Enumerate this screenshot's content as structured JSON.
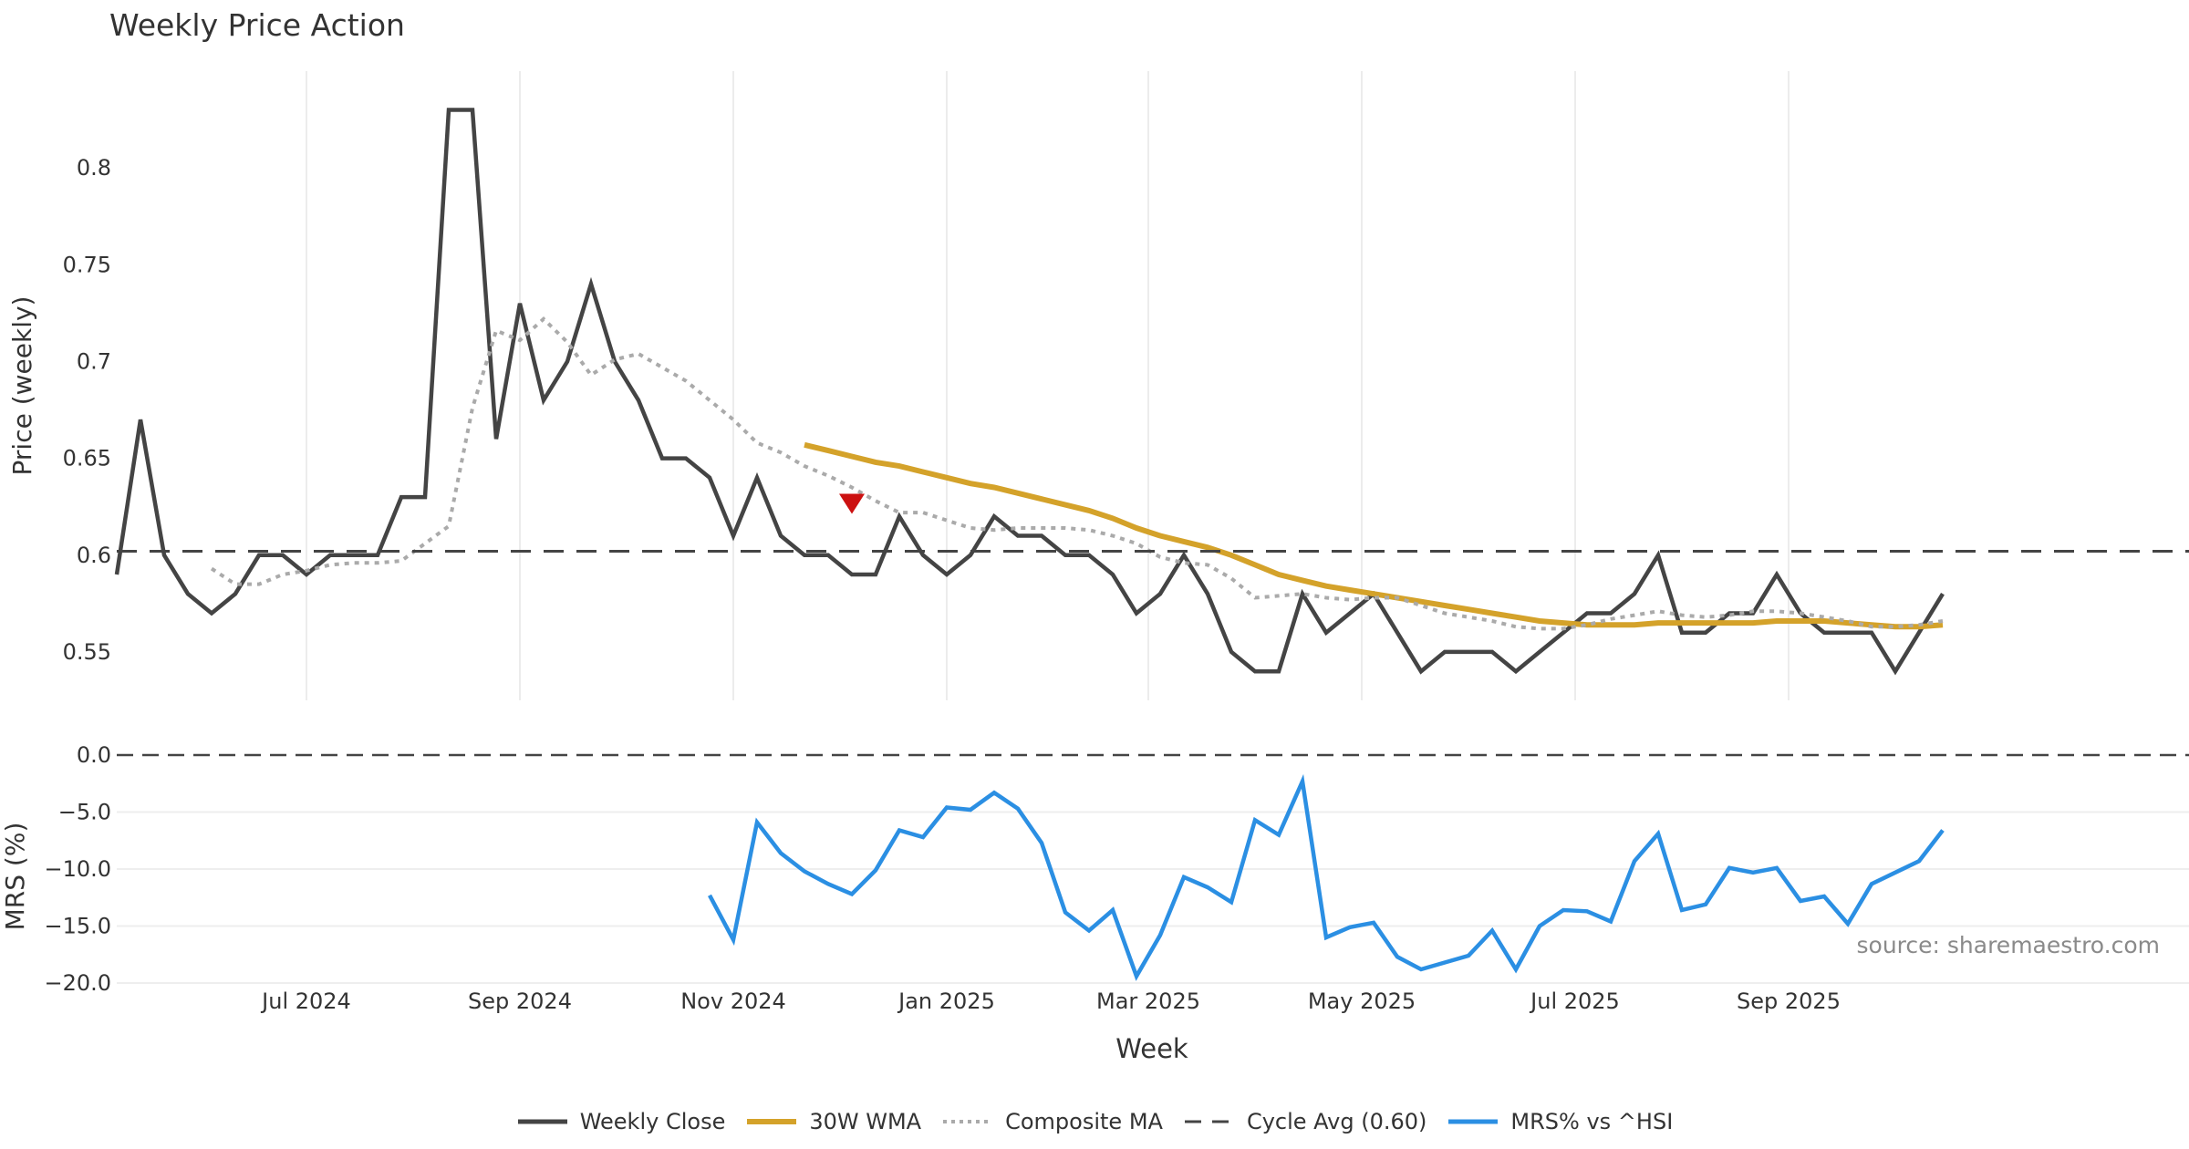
{
  "chart_data": {
    "type": "line",
    "title": "Weekly Price Action",
    "source_note": "source: sharemaestro.com",
    "xlabel": "Week",
    "x_ticks": [
      "Jul 2024",
      "Sep 2024",
      "Nov 2024",
      "Jan 2025",
      "Mar 2025",
      "May 2025",
      "Jul 2025",
      "Sep 2025"
    ],
    "weeks_per_tick": [
      8,
      17,
      26,
      35,
      43.5,
      52.5,
      61.5,
      70.5
    ],
    "price_panel": {
      "ylabel": "Price (weekly)",
      "ylim": [
        0.525,
        0.85
      ],
      "yticks": [
        "0.8",
        "0.75",
        "0.7",
        "0.65",
        "0.6",
        "0.55"
      ],
      "series": [
        {
          "name": "Weekly Close",
          "color": "#444444",
          "style": "solid",
          "start_week": 0,
          "values": [
            0.59,
            0.67,
            0.6,
            0.58,
            0.57,
            0.58,
            0.6,
            0.6,
            0.59,
            0.6,
            0.6,
            0.6,
            0.63,
            0.63,
            0.83,
            0.83,
            0.66,
            0.73,
            0.68,
            0.7,
            0.74,
            0.7,
            0.68,
            0.65,
            0.65,
            0.64,
            0.61,
            0.64,
            0.61,
            0.6,
            0.6,
            0.59,
            0.59,
            0.62,
            0.6,
            0.59,
            0.6,
            0.62,
            0.61,
            0.61,
            0.6,
            0.6,
            0.59,
            0.57,
            0.58,
            0.6,
            0.58,
            0.55,
            0.54,
            0.54,
            0.58,
            0.56,
            0.57,
            0.58,
            0.56,
            0.54,
            0.55,
            0.55,
            0.55,
            0.54,
            0.55,
            0.56,
            0.57,
            0.57,
            0.58,
            0.6,
            0.56,
            0.56,
            0.57,
            0.57,
            0.59,
            0.57,
            0.56,
            0.56,
            0.56,
            0.54,
            0.56,
            0.58
          ]
        },
        {
          "name": "30W WMA",
          "color": "#d4a22a",
          "style": "solid",
          "start_week": 29,
          "values": [
            0.657,
            0.654,
            0.651,
            0.648,
            0.646,
            0.643,
            0.64,
            0.637,
            0.635,
            0.632,
            0.629,
            0.626,
            0.623,
            0.619,
            0.614,
            0.61,
            0.607,
            0.604,
            0.6,
            0.595,
            0.59,
            0.587,
            0.584,
            0.582,
            0.58,
            0.578,
            0.576,
            0.574,
            0.572,
            0.57,
            0.568,
            0.566,
            0.565,
            0.564,
            0.564,
            0.564,
            0.565,
            0.565,
            0.565,
            0.565,
            0.565,
            0.566,
            0.566,
            0.566,
            0.565,
            0.564,
            0.563,
            0.563,
            0.564
          ]
        },
        {
          "name": "Composite MA",
          "color": "#aaaaaa",
          "style": "dotted",
          "start_week": 4,
          "values": [
            0.593,
            0.585,
            0.585,
            0.59,
            0.592,
            0.595,
            0.596,
            0.596,
            0.597,
            0.606,
            0.615,
            0.676,
            0.716,
            0.711,
            0.722,
            0.71,
            0.693,
            0.701,
            0.704,
            0.697,
            0.69,
            0.68,
            0.67,
            0.658,
            0.653,
            0.646,
            0.641,
            0.635,
            0.628,
            0.622,
            0.622,
            0.618,
            0.614,
            0.613,
            0.614,
            0.614,
            0.614,
            0.613,
            0.61,
            0.606,
            0.599,
            0.596,
            0.595,
            0.588,
            0.578,
            0.579,
            0.58,
            0.578,
            0.577,
            0.578,
            0.578,
            0.574,
            0.57,
            0.568,
            0.566,
            0.563,
            0.562,
            0.562,
            0.564,
            0.567,
            0.569,
            0.571,
            0.569,
            0.568,
            0.569,
            0.571,
            0.571,
            0.57,
            0.568,
            0.566,
            0.563,
            0.563,
            0.564,
            0.566
          ]
        },
        {
          "name": "Cycle Avg (0.60)",
          "color": "#444444",
          "style": "dashed",
          "value": 0.602
        }
      ],
      "annotations": [
        {
          "type": "triangle-down",
          "week": 31,
          "value": 0.627,
          "color": "#cc1111"
        }
      ]
    },
    "mrs_panel": {
      "ylabel": "MRS (%)",
      "ylim": [
        -20.0,
        0.0
      ],
      "yticks": [
        "0.0",
        "−5.0",
        "−10.0",
        "−15.0",
        "−20.0"
      ],
      "zero_line": 0.0,
      "series": [
        {
          "name": "MRS% vs ^HSI",
          "color": "#2b8fe3",
          "style": "solid",
          "start_week": 25,
          "values": [
            -12.3,
            -16.2,
            -5.9,
            -8.6,
            -10.2,
            -11.3,
            -12.2,
            -10.1,
            -6.6,
            -7.2,
            -4.6,
            -4.8,
            -3.3,
            -4.7,
            -7.7,
            -13.8,
            -15.4,
            -13.6,
            -19.4,
            -15.8,
            -10.7,
            -11.6,
            -12.9,
            -5.7,
            -7.0,
            -2.3,
            -16.0,
            -15.1,
            -14.7,
            -17.7,
            -18.8,
            -18.2,
            -17.6,
            -15.4,
            -18.8,
            -15.0,
            -13.6,
            -13.7,
            -14.6,
            -9.3,
            -6.9,
            -13.6,
            -13.1,
            -9.9,
            -10.3,
            -9.9,
            -12.8,
            -12.4,
            -14.8,
            -11.3,
            -10.3,
            -9.3,
            -6.6
          ]
        }
      ]
    },
    "legend": [
      "Weekly Close",
      "30W WMA",
      "Composite MA",
      "Cycle Avg (0.60)",
      "MRS% vs ^HSI"
    ]
  }
}
